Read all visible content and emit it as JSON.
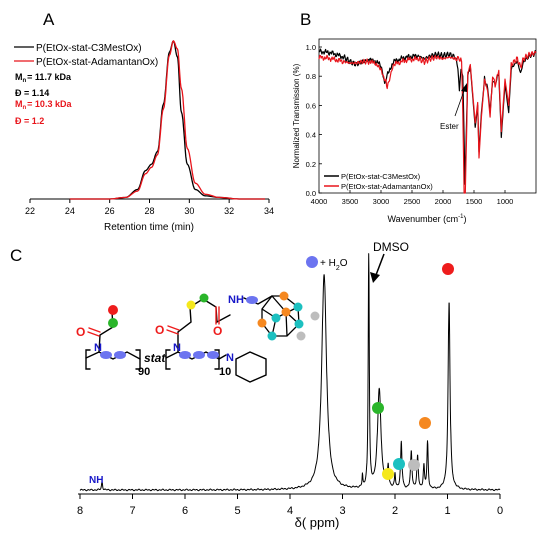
{
  "chart_data": [
    {
      "panel": "A",
      "type": "line",
      "xlabel": "Retention time (min)",
      "ylabel": "",
      "xlim": [
        22,
        34
      ],
      "xticks": [
        22,
        24,
        26,
        28,
        30,
        32,
        34
      ],
      "legend_position": "top-left",
      "colors": {
        "black": "#000000",
        "red": "#e8141b"
      },
      "series": [
        {
          "name": "P(EtOx-stat-C3MestOx)",
          "color": "#000000",
          "x": [
            24.0,
            26.0,
            26.8,
            27.4,
            27.8,
            28.1,
            28.4,
            28.7,
            29.0,
            29.2,
            29.4,
            29.6,
            29.9,
            30.3,
            30.8,
            31.5,
            32.5,
            33.8
          ],
          "y": [
            0.0,
            0.0,
            0.01,
            0.06,
            0.18,
            0.22,
            0.3,
            0.6,
            0.93,
            1.0,
            0.9,
            0.55,
            0.22,
            0.06,
            0.02,
            0.01,
            0.0,
            0.0
          ]
        },
        {
          "name": "P(EtOx-stat-AdamantanOx)",
          "color": "#e8141b",
          "x": [
            24.0,
            26.0,
            26.8,
            27.4,
            27.8,
            28.1,
            28.4,
            28.7,
            29.0,
            29.2,
            29.4,
            29.6,
            29.9,
            30.3,
            30.8,
            31.5,
            32.5,
            33.8
          ],
          "y": [
            0.0,
            0.0,
            0.01,
            0.05,
            0.16,
            0.2,
            0.28,
            0.57,
            0.91,
            1.0,
            0.95,
            0.7,
            0.32,
            0.1,
            0.03,
            0.01,
            0.0,
            0.0
          ]
        }
      ],
      "annotations": [
        {
          "label": "M",
          "sub": "n",
          "value": "= 11.7 kDa",
          "color": "#000000"
        },
        {
          "label": "Đ = 1.14",
          "sub": "",
          "value": "",
          "color": "#000000"
        },
        {
          "label": "M",
          "sub": "n",
          "value": "= 10.3 kDa",
          "color": "#e8141b"
        },
        {
          "label": "Đ = 1.2",
          "sub": "",
          "value": "",
          "color": "#e8141b"
        }
      ]
    },
    {
      "panel": "B",
      "type": "line",
      "xlabel": "Wavenumber (cm",
      "xlabel_sup": "-1",
      "xlabel_end": ")",
      "ylabel": "Normalized Transmission (%)",
      "xlim": [
        4000,
        500
      ],
      "ylim": [
        0.0,
        1.0
      ],
      "xticks": [
        4000,
        3500,
        3000,
        2500,
        2000,
        1500,
        1000
      ],
      "yticks": [
        0.0,
        0.2,
        0.4,
        0.6,
        0.8,
        1.0
      ],
      "ytick_labels": [
        "0.0",
        "0.2",
        "0.4",
        "0.6",
        "0.8",
        "1.0"
      ],
      "legend_position": "bottom-left",
      "annotation": "Ester",
      "annotation_x": 1730,
      "series": [
        {
          "name": "P(EtOx-stat-C3MestOx)",
          "color": "#000000",
          "x": [
            4000,
            3800,
            3600,
            3500,
            3400,
            3300,
            3200,
            3050,
            2980,
            2940,
            2880,
            2800,
            2600,
            2400,
            2300,
            2200,
            2100,
            2000,
            1900,
            1800,
            1760,
            1735,
            1710,
            1680,
            1645,
            1620,
            1600,
            1560,
            1480,
            1440,
            1420,
            1380,
            1330,
            1280,
            1240,
            1200,
            1160,
            1100,
            1060,
            1000,
            940,
            900,
            850,
            800,
            750,
            700,
            600,
            500
          ],
          "y": [
            0.97,
            0.96,
            0.93,
            0.9,
            0.88,
            0.9,
            0.91,
            0.9,
            0.84,
            0.75,
            0.83,
            0.9,
            0.93,
            0.94,
            0.92,
            0.94,
            0.95,
            0.94,
            0.95,
            0.93,
            0.85,
            0.7,
            0.86,
            0.8,
            0.06,
            0.5,
            0.8,
            0.87,
            0.45,
            0.6,
            0.28,
            0.55,
            0.78,
            0.72,
            0.55,
            0.78,
            0.74,
            0.82,
            0.38,
            0.75,
            0.55,
            0.85,
            0.88,
            0.9,
            0.82,
            0.9,
            0.94,
            0.96
          ]
        },
        {
          "name": "P(EtOx-stat-AdamantanOx)",
          "color": "#e8141b",
          "x": [
            4000,
            3800,
            3600,
            3500,
            3400,
            3300,
            3200,
            3050,
            2980,
            2920,
            2900,
            2850,
            2800,
            2600,
            2400,
            2300,
            2200,
            2100,
            2000,
            1900,
            1800,
            1740,
            1700,
            1680,
            1660,
            1640,
            1620,
            1600,
            1560,
            1480,
            1440,
            1420,
            1380,
            1330,
            1280,
            1240,
            1200,
            1160,
            1100,
            1060,
            1000,
            940,
            900,
            850,
            800,
            750,
            700,
            600,
            500
          ],
          "y": [
            0.93,
            0.92,
            0.9,
            0.89,
            0.89,
            0.9,
            0.9,
            0.88,
            0.82,
            0.76,
            0.72,
            0.8,
            0.88,
            0.91,
            0.92,
            0.9,
            0.92,
            0.93,
            0.92,
            0.93,
            0.92,
            0.92,
            0.9,
            0.55,
            0.0,
            0.0,
            0.4,
            0.83,
            0.88,
            0.48,
            0.62,
            0.24,
            0.52,
            0.78,
            0.7,
            0.52,
            0.8,
            0.74,
            0.84,
            0.42,
            0.78,
            0.6,
            0.88,
            0.9,
            0.92,
            0.86,
            0.92,
            0.95,
            0.96
          ]
        }
      ]
    },
    {
      "panel": "C",
      "type": "line",
      "xlabel": "δ( ppm)",
      "xlim": [
        8,
        0
      ],
      "xticks": [
        8,
        7,
        6,
        5,
        4,
        3,
        2,
        1,
        0
      ],
      "series": [
        {
          "name": "",
          "color": "#000000",
          "peaks": [
            {
              "x": 7.58,
              "h": 0.035,
              "w": 0.012
            },
            {
              "x": 3.35,
              "h": 0.93,
              "w": 0.055
            },
            {
              "x": 2.62,
              "h": 0.05,
              "w": 0.008
            },
            {
              "x": 2.5,
              "h": 1.0,
              "w": 0.012
            },
            {
              "x": 2.3,
              "h": 0.43,
              "w": 0.04
            },
            {
              "x": 2.13,
              "h": 0.09,
              "w": 0.015
            },
            {
              "x": 2.0,
              "h": 0.06,
              "w": 0.012
            },
            {
              "x": 1.88,
              "h": 0.2,
              "w": 0.016
            },
            {
              "x": 1.69,
              "h": 0.16,
              "w": 0.016
            },
            {
              "x": 1.57,
              "h": 0.14,
              "w": 0.016
            },
            {
              "x": 1.45,
              "h": 0.1,
              "w": 0.014
            },
            {
              "x": 1.38,
              "h": 0.2,
              "w": 0.014
            },
            {
              "x": 0.97,
              "h": 0.81,
              "w": 0.022
            }
          ]
        }
      ],
      "peak_labels": [
        {
          "text": "NH",
          "color": "#1717c8"
        },
        {
          "text": "+ H",
          "sub": "2",
          "end": "O",
          "color": "#000000"
        },
        {
          "text": "DMSO",
          "color": "#000000"
        }
      ],
      "dot_colors": {
        "blue": "#6c74f0",
        "red": "#ee1c1c",
        "green": "#2ab52a",
        "yellow": "#f5e81c",
        "teal": "#1cc0c0",
        "orange": "#f58820",
        "grey": "#bdbdbd"
      },
      "structure": {
        "repeat_1": "90",
        "separator": "stat",
        "repeat_2": "10",
        "atoms": {
          "O": "O",
          "N": "N",
          "NH": "NH"
        }
      }
    }
  ],
  "panel_letters": [
    "A",
    "B",
    "C"
  ]
}
